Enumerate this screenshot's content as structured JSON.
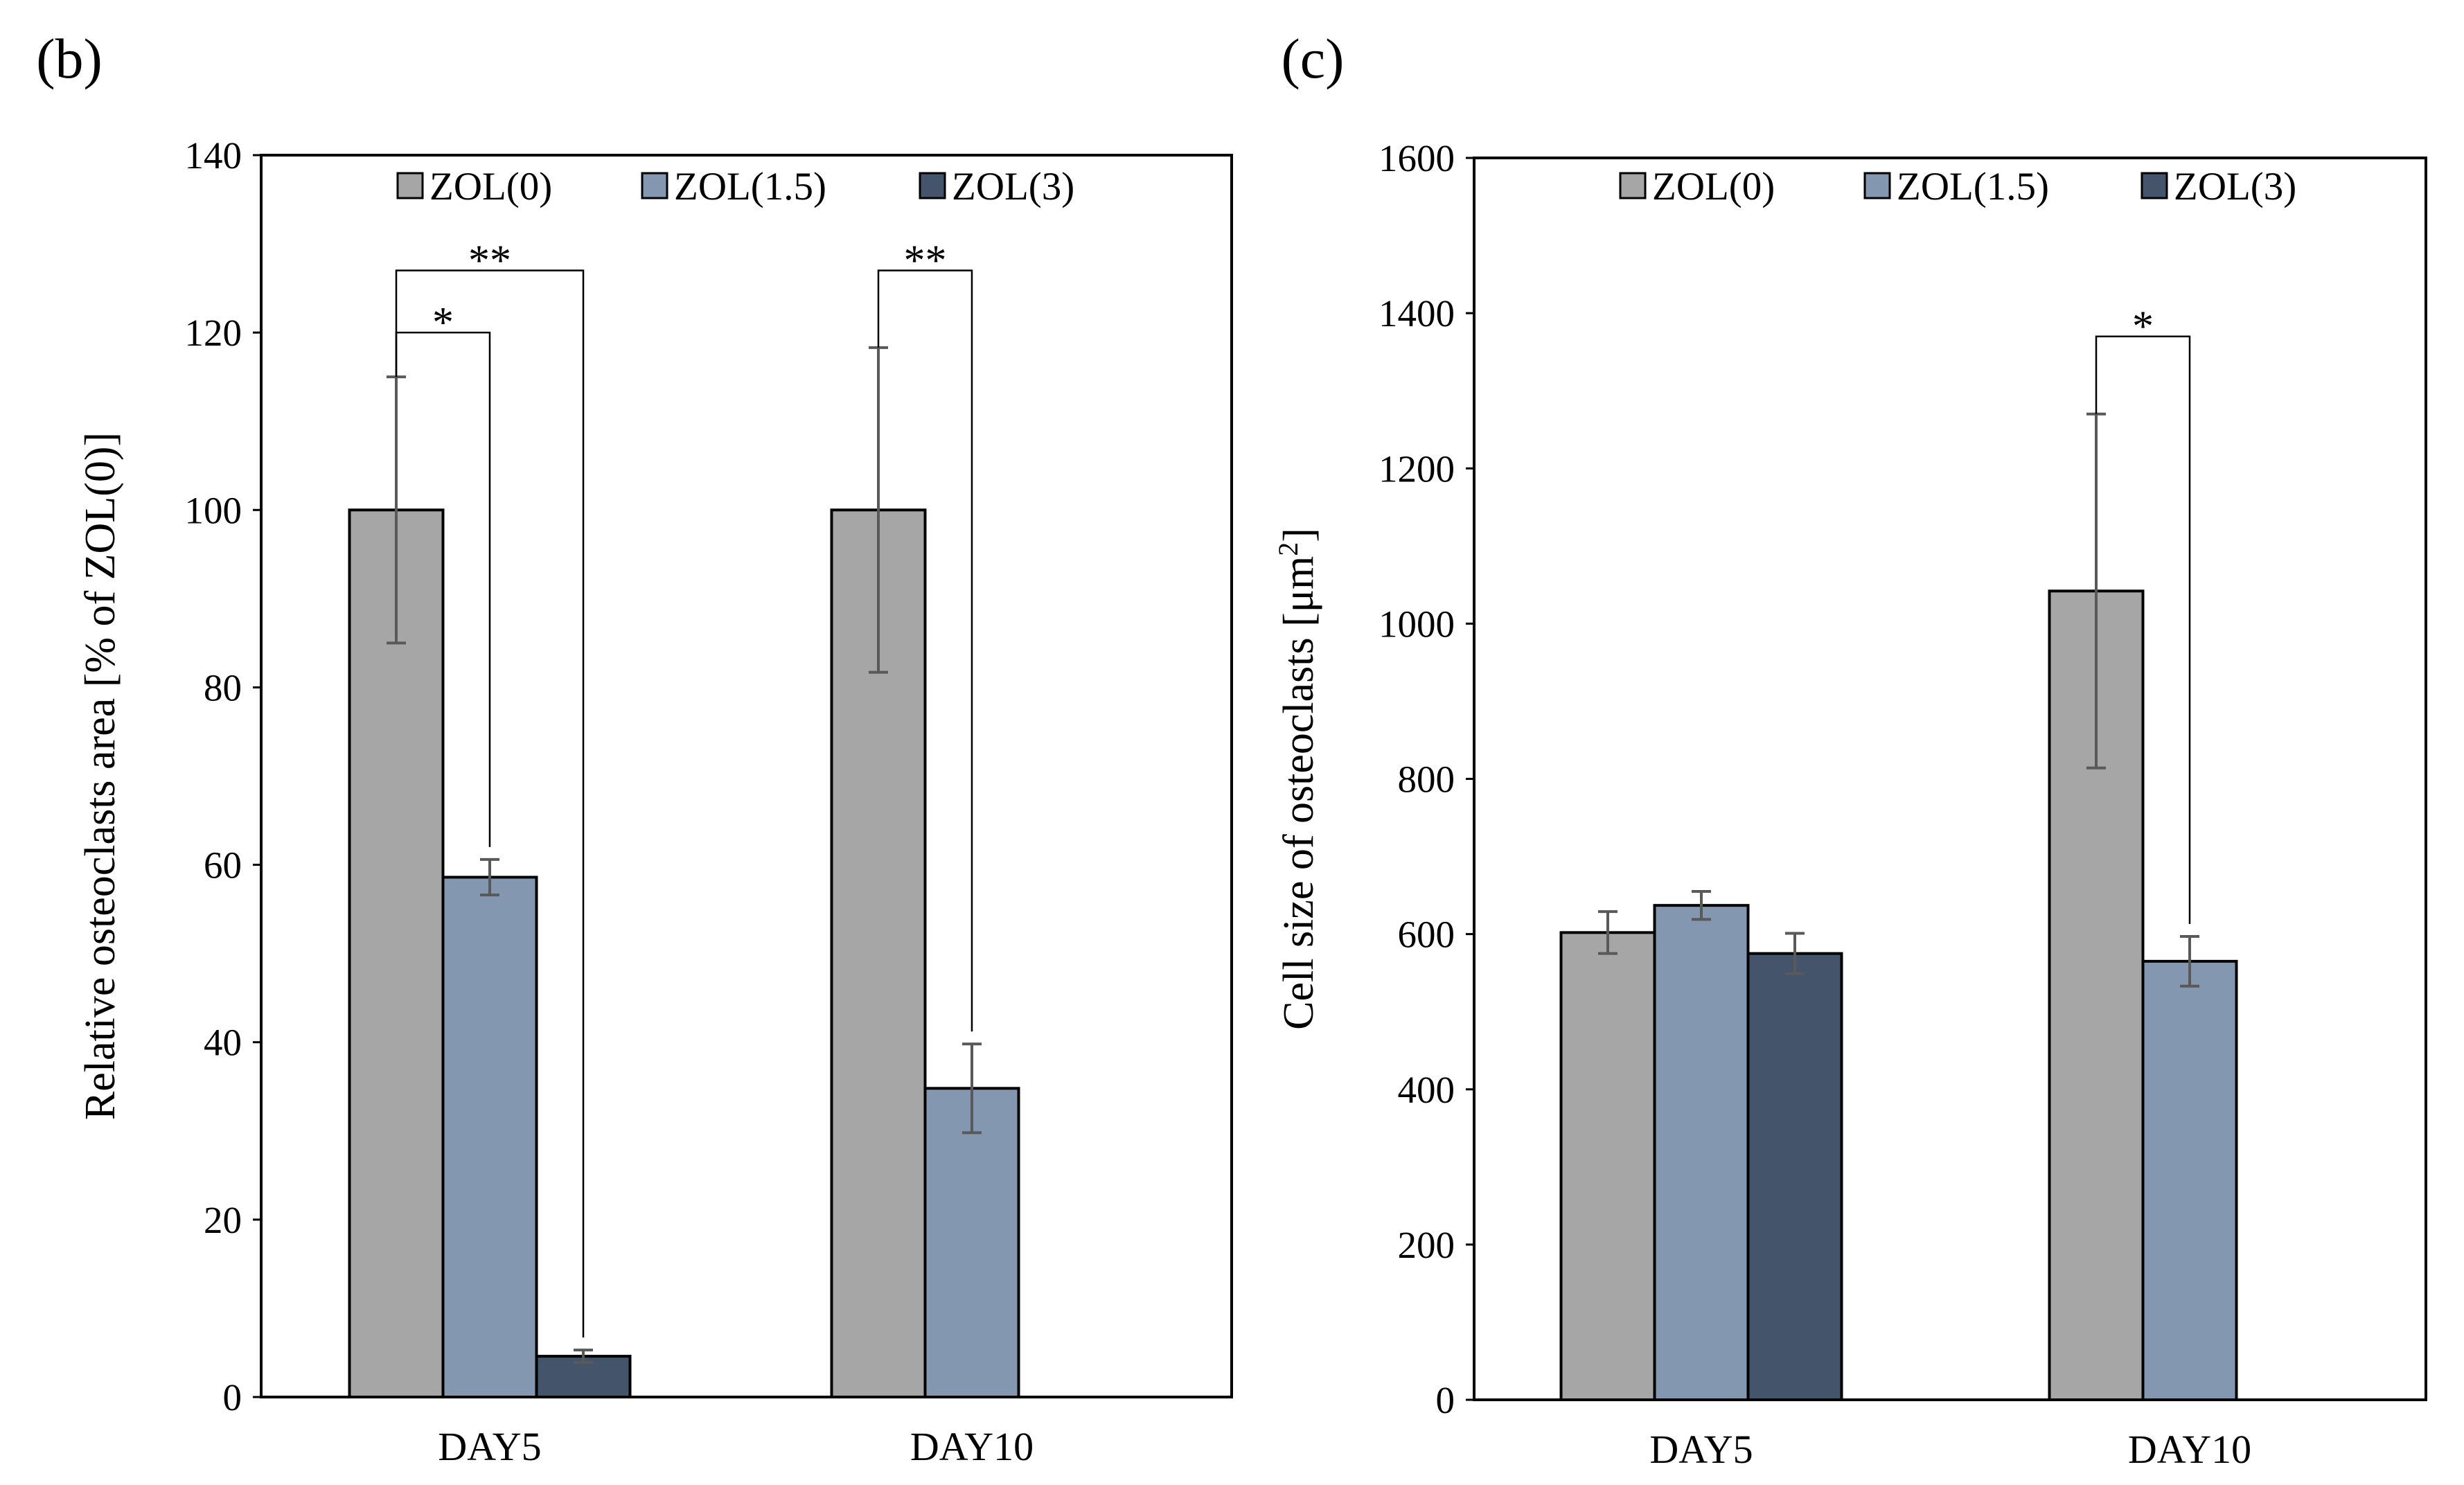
{
  "chart_data": [
    {
      "type": "bar",
      "panel_label": "(b)",
      "title": "",
      "xlabel": "",
      "ylabel": "Relative osteoclasts area [% of ZOL(0)]",
      "ylim": [
        0,
        140
      ],
      "yticks": [
        "0",
        "20",
        "40",
        "60",
        "80",
        "100",
        "120",
        "140"
      ],
      "categories": [
        "DAY5",
        "DAY10"
      ],
      "legend_position": "top",
      "series": [
        {
          "name": "ZOL(0)",
          "color": "#A6A6A6",
          "values": [
            100,
            100
          ],
          "errors": [
            15,
            18.3
          ]
        },
        {
          "name": "ZOL(1.5)",
          "color": "#8497B0",
          "values": [
            58.6,
            34.8
          ],
          "errors": [
            2,
            5
          ]
        },
        {
          "name": "ZOL(3)",
          "color": "#44546A",
          "values": [
            4.6,
            null
          ],
          "errors": [
            0.7,
            null
          ]
        }
      ],
      "significance": [
        {
          "category": "DAY5",
          "from_series": 0,
          "to_series": 1,
          "label": "*",
          "level": 120
        },
        {
          "category": "DAY5",
          "from_series": 0,
          "to_series": 2,
          "label": "**",
          "level": 127
        },
        {
          "category": "DAY10",
          "from_series": 0,
          "to_series": 1,
          "label": "**",
          "level": 127
        }
      ]
    },
    {
      "type": "bar",
      "panel_label": "(c)",
      "title": "",
      "xlabel": "",
      "ylabel_main": "Cell size of osteoclasts [μm",
      "ylabel_sup": "2",
      "ylabel_end": "]",
      "ylim": [
        0,
        1600
      ],
      "yticks": [
        "0",
        "200",
        "400",
        "600",
        "800",
        "1000",
        "1200",
        "1400",
        "1600"
      ],
      "categories": [
        "DAY5",
        "DAY10"
      ],
      "legend_position": "top",
      "series": [
        {
          "name": "ZOL(0)",
          "color": "#A6A6A6",
          "values": [
            602,
            1042
          ],
          "errors": [
            27,
            228
          ]
        },
        {
          "name": "ZOL(1.5)",
          "color": "#8497B0",
          "values": [
            637,
            565
          ],
          "errors": [
            18,
            32
          ]
        },
        {
          "name": "ZOL(3)",
          "color": "#44546A",
          "values": [
            575,
            null
          ],
          "errors": [
            26,
            null
          ]
        }
      ],
      "significance": [
        {
          "category": "DAY10",
          "from_series": 0,
          "to_series": 1,
          "label": "*",
          "level": 1370
        }
      ]
    }
  ]
}
